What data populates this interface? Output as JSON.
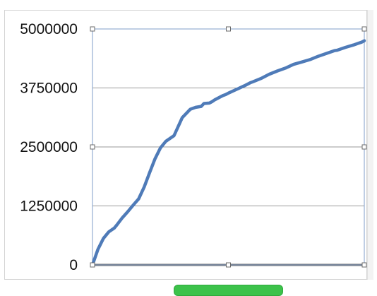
{
  "chart_data": {
    "type": "line",
    "title": "",
    "xlabel": "",
    "ylabel": "",
    "ylim": [
      0,
      5000000
    ],
    "yticks": [
      "5000000",
      "3750000",
      "2500000",
      "1250000",
      "0"
    ],
    "yticks_values": [
      5000000,
      3750000,
      2500000,
      1250000,
      0
    ],
    "grid": true,
    "legend": "none",
    "series": [
      {
        "color": "#4f7bb8",
        "x": [
          0,
          2,
          4,
          6,
          8,
          9,
          11,
          13,
          15,
          17,
          19,
          21,
          23,
          25,
          27,
          30,
          33,
          36,
          38,
          40,
          41,
          43,
          44,
          45,
          46,
          47,
          48,
          49,
          50,
          53,
          56,
          58,
          59,
          62,
          65,
          68,
          71,
          74,
          77,
          80,
          83,
          86,
          89,
          90,
          93,
          96,
          99,
          100
        ],
        "y": [
          0,
          330000,
          560000,
          700000,
          780000,
          850000,
          1000000,
          1130000,
          1270000,
          1400000,
          1650000,
          1950000,
          2250000,
          2480000,
          2620000,
          2740000,
          3120000,
          3300000,
          3340000,
          3360000,
          3420000,
          3430000,
          3460000,
          3500000,
          3530000,
          3560000,
          3590000,
          3610000,
          3640000,
          3720000,
          3800000,
          3860000,
          3880000,
          3950000,
          4040000,
          4110000,
          4170000,
          4250000,
          4300000,
          4350000,
          4420000,
          4480000,
          4540000,
          4550000,
          4610000,
          4660000,
          4720000,
          4750000
        ]
      }
    ]
  },
  "colors": {
    "line": "#4f7bb8",
    "axis": "#6b6b6b",
    "grid": "#9a9a9a",
    "selection_border": "#7f9cc8",
    "green_button": "#3cc24a"
  }
}
